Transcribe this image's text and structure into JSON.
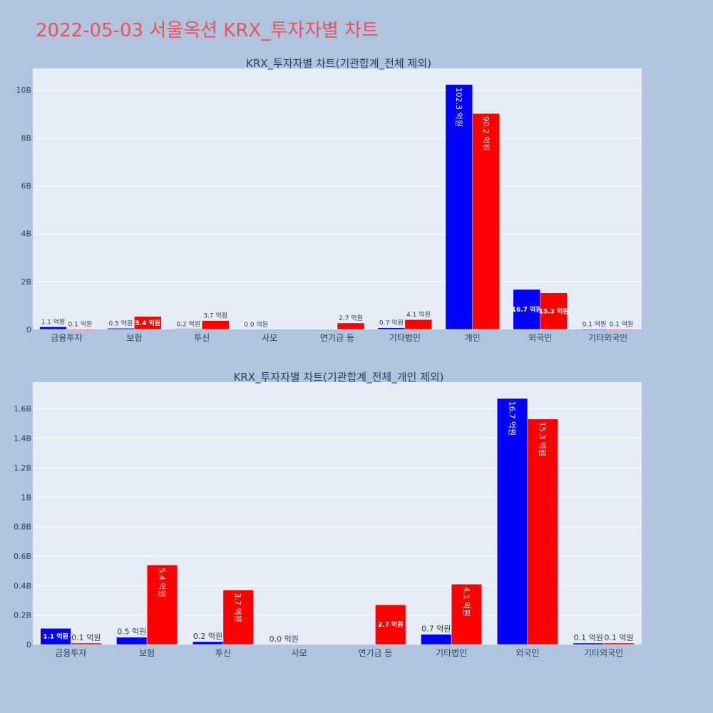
{
  "title": "2022-05-03 서울옥션 KRX_투자자별 차트",
  "colors": {
    "buy": "#0000ff",
    "sell": "#ff0000",
    "background": "#b0c4de",
    "plot_background": "#e5ecf6",
    "title": "#e8525c"
  },
  "chart_data": [
    {
      "type": "bar",
      "title": "KRX_투자자별 차트(기관합계_전체 제외)",
      "categories": [
        "금융투자",
        "보험",
        "투신",
        "사모",
        "연기금 등",
        "기타법인",
        "개인",
        "외국인",
        "기타외국인"
      ],
      "series": [
        {
          "color": "#0000ff",
          "values": [
            0.11,
            0.05,
            0.02,
            0.0,
            0.0,
            0.07,
            10.23,
            1.67,
            0.01
          ],
          "labels": [
            "1.1 억원",
            "0.5 억원",
            "0.2 억원",
            "0.0 억원",
            "",
            "0.7 억원",
            "102.3 억원",
            "16.7 억원",
            "0.1 억원"
          ]
        },
        {
          "color": "#ff0000",
          "values": [
            0.01,
            0.54,
            0.37,
            0.0,
            0.27,
            0.41,
            9.02,
            1.53,
            0.01
          ],
          "labels": [
            "0.1 억원",
            "5.4 억원",
            "3.7 억원",
            "",
            "2.7 억원",
            "4.1 억원",
            "90.2 억원",
            "15.3 억원",
            "0.1 억원"
          ]
        }
      ],
      "y_unit_suffix": "B",
      "yticks": [
        0,
        2,
        4,
        6,
        8,
        10
      ],
      "ytick_labels": [
        "0",
        "2B",
        "4B",
        "6B",
        "8B",
        "10B"
      ],
      "ylim": [
        0,
        10.9
      ],
      "grid": true
    },
    {
      "type": "bar",
      "title": "KRX_투자자별 차트(기관합계_전체_개인 제외)",
      "categories": [
        "금융투자",
        "보험",
        "투신",
        "사모",
        "연기금 등",
        "기타법인",
        "외국인",
        "기타외국인"
      ],
      "series": [
        {
          "color": "#0000ff",
          "values": [
            0.11,
            0.05,
            0.02,
            0.0,
            0.0,
            0.07,
            1.67,
            0.01
          ],
          "labels": [
            "1.1 억원",
            "0.5 억원",
            "0.2 억원",
            "0.0 억원",
            "",
            "0.7 억원",
            "16.7 억원",
            "0.1 억원"
          ]
        },
        {
          "color": "#ff0000",
          "values": [
            0.01,
            0.54,
            0.37,
            0.0,
            0.27,
            0.41,
            1.53,
            0.01
          ],
          "labels": [
            "0.1 억원",
            "5.4 억원",
            "3.7 억원",
            "",
            "2.7 억원",
            "4.1 억원",
            "15.3 억원",
            "0.1 억원"
          ]
        }
      ],
      "y_unit_suffix": "B",
      "yticks": [
        0,
        0.2,
        0.4,
        0.6,
        0.8,
        1.0,
        1.2,
        1.4,
        1.6
      ],
      "ytick_labels": [
        "0",
        "0.2B",
        "0.4B",
        "0.6B",
        "0.8B",
        "1B",
        "1.2B",
        "1.4B",
        "1.6B"
      ],
      "ylim": [
        0,
        1.78
      ],
      "grid": true
    }
  ]
}
